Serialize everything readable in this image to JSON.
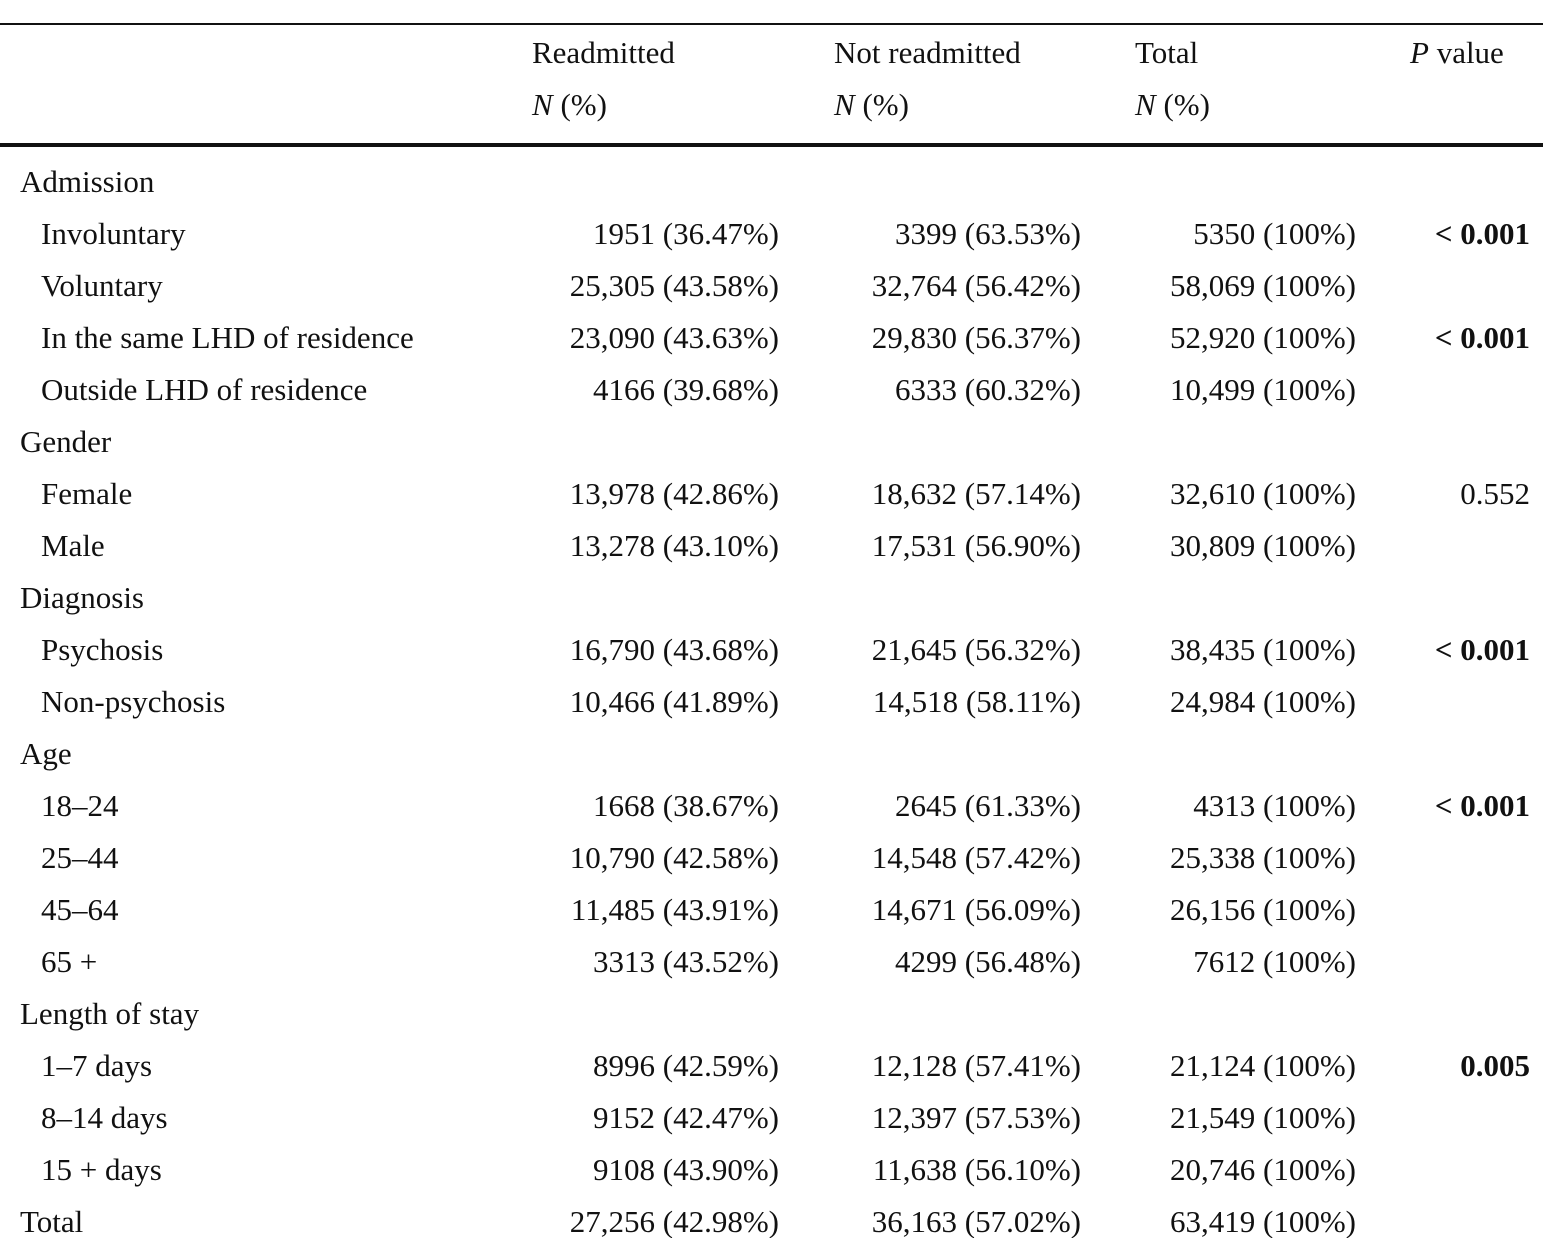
{
  "header": {
    "columns": [
      {
        "label": "Readmitted",
        "sub_italic": "N",
        "sub_rest": "(%)"
      },
      {
        "label": "Not readmitted",
        "sub_italic": "N",
        "sub_rest": "(%)"
      },
      {
        "label": "Total",
        "sub_italic": "N",
        "sub_rest": "(%)"
      }
    ],
    "p_italic": "P",
    "p_rest": "value"
  },
  "table": {
    "rows": [
      {
        "label": "Admission"
      },
      {
        "label": "Involuntary",
        "indent": true,
        "values": [
          "1951 (36.47%)",
          "3399 (63.53%)",
          "5350 (100%)"
        ],
        "p": "< 0.001",
        "p_bold": true
      },
      {
        "label": "Voluntary",
        "indent": true,
        "values": [
          "25,305 (43.58%)",
          "32,764 (56.42%)",
          "58,069 (100%)"
        ]
      },
      {
        "label": "In the same LHD of residence",
        "indent": true,
        "values": [
          "23,090 (43.63%)",
          "29,830 (56.37%)",
          "52,920 (100%)"
        ],
        "p": "< 0.001",
        "p_bold": true
      },
      {
        "label": "Outside LHD of residence",
        "indent": true,
        "values": [
          "4166 (39.68%)",
          "6333 (60.32%)",
          "10,499 (100%)"
        ]
      },
      {
        "label": "Gender"
      },
      {
        "label": "Female",
        "indent": true,
        "values": [
          "13,978 (42.86%)",
          "18,632 (57.14%)",
          "32,610 (100%)"
        ],
        "p": "0.552",
        "p_bold": false
      },
      {
        "label": "Male",
        "indent": true,
        "values": [
          "13,278 (43.10%)",
          "17,531 (56.90%)",
          "30,809 (100%)"
        ]
      },
      {
        "label": "Diagnosis"
      },
      {
        "label": "Psychosis",
        "indent": true,
        "values": [
          "16,790 (43.68%)",
          "21,645 (56.32%)",
          "38,435 (100%)"
        ],
        "p": "< 0.001",
        "p_bold": true
      },
      {
        "label": "Non-psychosis",
        "indent": true,
        "values": [
          "10,466 (41.89%)",
          "14,518 (58.11%)",
          "24,984 (100%)"
        ]
      },
      {
        "label": "Age"
      },
      {
        "label": "18–24",
        "indent": true,
        "values": [
          "1668 (38.67%)",
          "2645 (61.33%)",
          "4313 (100%)"
        ],
        "p": "< 0.001",
        "p_bold": true
      },
      {
        "label": "25–44",
        "indent": true,
        "values": [
          "10,790 (42.58%)",
          "14,548 (57.42%)",
          "25,338 (100%)"
        ]
      },
      {
        "label": "45–64",
        "indent": true,
        "values": [
          "11,485 (43.91%)",
          "14,671 (56.09%)",
          "26,156 (100%)"
        ]
      },
      {
        "label": "65 +",
        "indent": true,
        "values": [
          "3313 (43.52%)",
          "4299 (56.48%)",
          "7612 (100%)"
        ]
      },
      {
        "label": "Length of stay"
      },
      {
        "label": "1–7 days",
        "indent": true,
        "values": [
          "8996 (42.59%)",
          "12,128 (57.41%)",
          "21,124 (100%)"
        ],
        "p": "0.005",
        "p_bold": true
      },
      {
        "label": "8–14 days",
        "indent": true,
        "values": [
          "9152 (42.47%)",
          "12,397 (57.53%)",
          "21,549 (100%)"
        ]
      },
      {
        "label": "15 + days",
        "indent": true,
        "values": [
          "9108 (43.90%)",
          "11,638 (56.10%)",
          "20,746 (100%)"
        ]
      },
      {
        "label": "Total",
        "values": [
          "27,256 (42.98%)",
          "36,163 (57.02%)",
          "63,419 (100%)"
        ]
      }
    ]
  }
}
